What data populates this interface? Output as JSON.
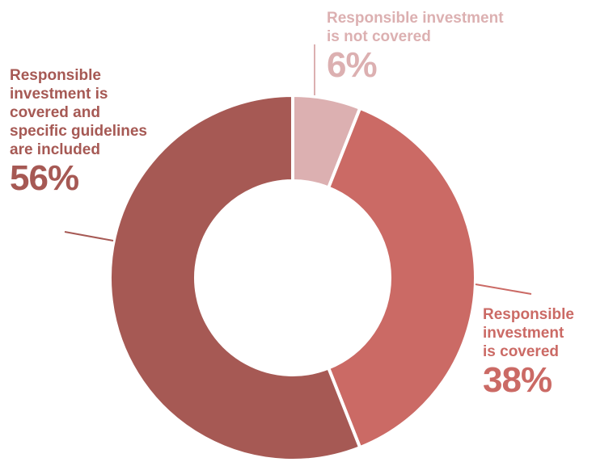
{
  "chart_data": {
    "type": "pie",
    "variant": "donut",
    "slices": [
      {
        "label": "Responsible investment\nis not covered",
        "value": 6,
        "value_label": "6%",
        "color": "#dcb0b1"
      },
      {
        "label": "Responsible\ninvestment\nis covered",
        "value": 38,
        "value_label": "38%",
        "color": "#cb6a65"
      },
      {
        "label": "Responsible\ninvestment is\ncovered and\nspecific guidelines\nare included",
        "value": 56,
        "value_label": "56%",
        "color": "#a65954"
      }
    ],
    "title": "",
    "legend": "none"
  }
}
